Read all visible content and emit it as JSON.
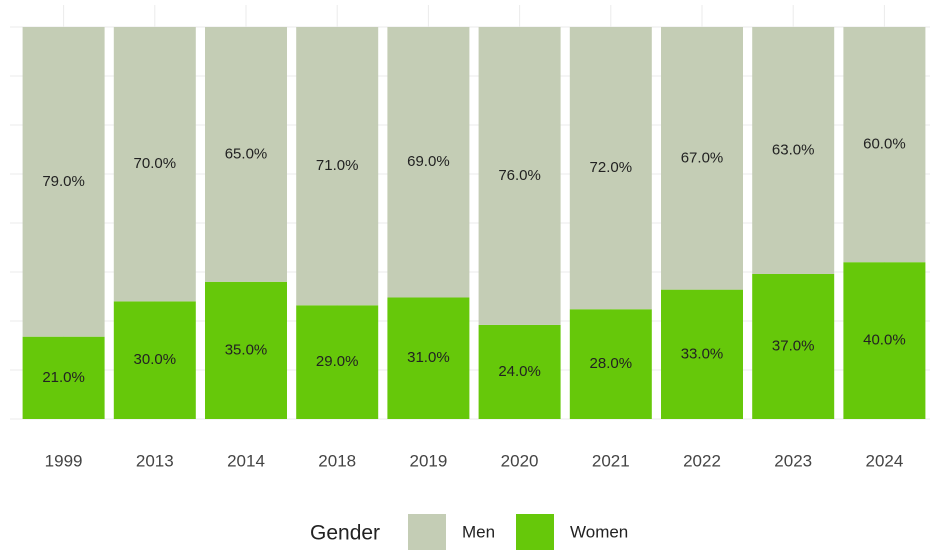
{
  "chart_data": {
    "type": "stacked_bar",
    "categories": [
      "1999",
      "2013",
      "2014",
      "2018",
      "2019",
      "2020",
      "2021",
      "2022",
      "2023",
      "2024"
    ],
    "series": [
      {
        "name": "Women",
        "color": "#66c80a",
        "values": [
          21,
          30,
          35,
          29,
          31,
          24,
          28,
          33,
          37,
          40
        ],
        "value_labels": [
          "21.0%",
          "30.0%",
          "35.0%",
          "29.0%",
          "31.0%",
          "24.0%",
          "28.0%",
          "33.0%",
          "37.0%",
          "40.0%"
        ]
      },
      {
        "name": "Men",
        "color": "#c4cdb5",
        "values": [
          79,
          70,
          65,
          71,
          69,
          76,
          72,
          67,
          63,
          60
        ],
        "value_labels": [
          "79.0%",
          "70.0%",
          "65.0%",
          "71.0%",
          "69.0%",
          "76.0%",
          "72.0%",
          "67.0%",
          "63.0%",
          "60.0%"
        ]
      }
    ],
    "legend_title": "Gender",
    "ylim": [
      0,
      100
    ],
    "yticks": [
      0,
      12.5,
      25,
      37.5,
      50,
      62.5,
      75,
      87.5,
      100
    ],
    "grid": true
  }
}
